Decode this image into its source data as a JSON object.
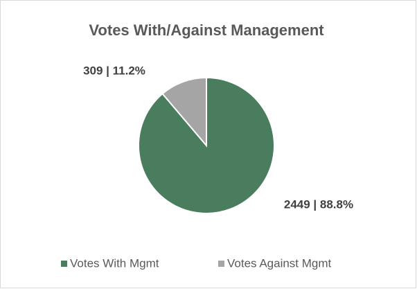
{
  "chart_data": {
    "type": "pie",
    "title": "Votes With/Against Management",
    "categories": [
      "Votes With Mgmt",
      "Votes Against Mgmt"
    ],
    "values": [
      2449,
      309
    ],
    "value_labels": [
      "2449 | 88.8%",
      "309 | 11.2%"
    ],
    "colors": [
      "#4a7d5e",
      "#a5a5a5"
    ],
    "legend": "bottom"
  }
}
